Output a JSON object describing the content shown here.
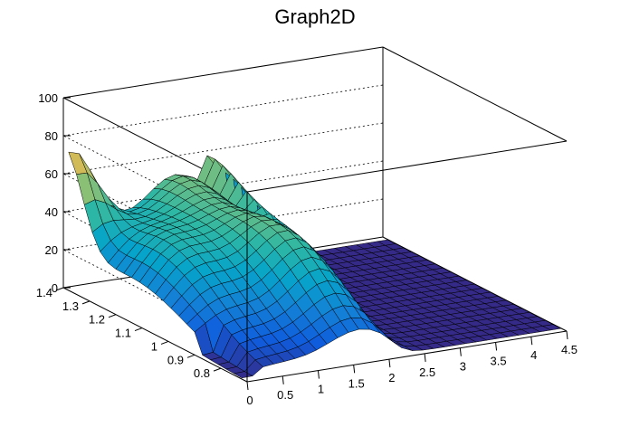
{
  "chart_data": {
    "type": "surface",
    "title": "Graph2D",
    "xlabel": "",
    "ylabel": "",
    "zlabel": "",
    "xlim": [
      0,
      4.5
    ],
    "ylim": [
      0.7,
      1.4
    ],
    "zlim": [
      0,
      100
    ],
    "x_ticks": [
      "0",
      "0.5",
      "1",
      "1.5",
      "2",
      "2.5",
      "3",
      "3.5",
      "4",
      "4.5"
    ],
    "y_ticks": [
      "0.8",
      "0.9",
      "1",
      "1.1",
      "1.2",
      "1.3",
      "1.4"
    ],
    "z_ticks": [
      "0",
      "20",
      "40",
      "60",
      "80",
      "100"
    ],
    "grid": true,
    "colormap": [
      "#352a87",
      "#0f5cdd",
      "#1481d6",
      "#06a4ca",
      "#2eb7a4",
      "#87bf77",
      "#d1bb59",
      "#fec832",
      "#f9fb0e"
    ],
    "x_grid": [
      0,
      0.15,
      0.3,
      0.45,
      0.6,
      0.75,
      0.9,
      1.05,
      1.2,
      1.35,
      1.5,
      1.65,
      1.8,
      1.95,
      2.1,
      2.25,
      2.4,
      2.55,
      2.7,
      2.85,
      3.0,
      3.15,
      3.3,
      3.45,
      3.6,
      3.75,
      3.9,
      4.05,
      4.2,
      4.35,
      4.5
    ],
    "y_grid": [
      0.72,
      0.75,
      0.78,
      0.81,
      0.84,
      0.87,
      0.9,
      0.93,
      0.96,
      0.99,
      1.02,
      1.05,
      1.08,
      1.11,
      1.14,
      1.17,
      1.2,
      1.23,
      1.26,
      1.29,
      1.32,
      1.35,
      1.38,
      1.41
    ],
    "z_formula_note": ""
  }
}
